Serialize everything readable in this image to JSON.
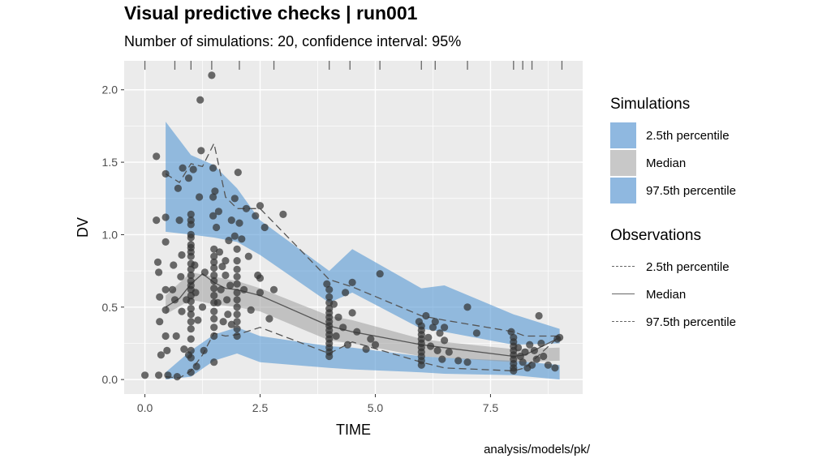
{
  "header": {
    "title": "Visual predictive checks | run001",
    "subtitle": "Number of simulations: 20, confidence interval: 95%"
  },
  "caption": "analysis/models/pk/",
  "colors": {
    "panel_bg": "#ebebeb",
    "grid": "#ffffff",
    "band_blue": "#5b9bd5",
    "band_grey": "#9e9e9e",
    "line": "#555555",
    "points": "#333333"
  },
  "legend": {
    "simulations_title": "Simulations",
    "simulations": [
      {
        "label": "2.5th percentile",
        "color": "#8fb8e0"
      },
      {
        "label": "Median",
        "color": "#c8c8c8"
      },
      {
        "label": "97.5th percentile",
        "color": "#8fb8e0"
      }
    ],
    "observations_title": "Observations",
    "observations": [
      {
        "label": "2.5th percentile",
        "style": "dashed"
      },
      {
        "label": "Median",
        "style": "solid"
      },
      {
        "label": "97.5th percentile",
        "style": "dashed"
      }
    ]
  },
  "chart_data": {
    "type": "scatter",
    "title": "Visual predictive checks | run001",
    "subtitle": "Number of simulations: 20, confidence interval: 95%",
    "xlabel": "TIME",
    "ylabel": "DV",
    "xlim": [
      -0.45,
      9.5
    ],
    "ylim": [
      -0.1,
      2.2
    ],
    "xticks": [
      0.0,
      2.5,
      5.0,
      7.5
    ],
    "xtick_labels": [
      "0.0",
      "2.5",
      "5.0",
      "7.5"
    ],
    "yticks": [
      0.0,
      0.5,
      1.0,
      1.5,
      2.0
    ],
    "ytick_labels": [
      "0.0",
      "0.5",
      "1.0",
      "1.5",
      "2.0"
    ],
    "grid": true,
    "legend_position": "right",
    "bin_edges": [
      0.0,
      0.65,
      1.0,
      1.45,
      2.05,
      2.8,
      4.0,
      4.45,
      5.1,
      6.0,
      6.3,
      7.0,
      8.0,
      8.2,
      8.4,
      9.05
    ],
    "sim_bands": {
      "x": [
        0.45,
        1.0,
        1.5,
        2.0,
        2.5,
        4.0,
        4.5,
        6.0,
        6.5,
        8.0,
        9.0
      ],
      "lower_pct_low": [
        0.0,
        0.02,
        0.13,
        0.18,
        0.12,
        0.08,
        0.07,
        0.05,
        0.04,
        0.03,
        0.0
      ],
      "lower_pct_high": [
        0.05,
        0.2,
        0.31,
        0.36,
        0.3,
        0.23,
        0.22,
        0.16,
        0.15,
        0.13,
        0.1
      ],
      "median_low": [
        0.45,
        0.55,
        0.52,
        0.5,
        0.47,
        0.27,
        0.25,
        0.16,
        0.15,
        0.12,
        0.13
      ],
      "median_high": [
        0.58,
        0.74,
        0.71,
        0.68,
        0.63,
        0.44,
        0.41,
        0.28,
        0.26,
        0.21,
        0.22
      ],
      "upper_pct_low": [
        1.02,
        1.0,
        0.98,
        0.95,
        0.86,
        0.53,
        0.6,
        0.35,
        0.33,
        0.24,
        0.25
      ],
      "upper_pct_high": [
        1.78,
        1.55,
        1.48,
        1.32,
        1.1,
        0.75,
        0.9,
        0.63,
        0.65,
        0.45,
        0.35
      ]
    },
    "observed": {
      "x": [
        0.45,
        0.75,
        1.0,
        1.25,
        1.5,
        1.75,
        2.0,
        2.5,
        4.0,
        4.5,
        6.0,
        6.5,
        8.0,
        8.25,
        9.0
      ],
      "p025": [
        0.02,
        0.01,
        0.06,
        0.17,
        0.32,
        0.3,
        0.31,
        0.36,
        0.18,
        0.26,
        0.12,
        0.08,
        0.06,
        0.08,
        0.3
      ],
      "median": [
        0.5,
        0.56,
        0.66,
        0.73,
        0.67,
        0.63,
        0.62,
        0.58,
        0.37,
        0.33,
        0.24,
        0.22,
        0.16,
        0.17,
        0.29
      ],
      "p975": [
        1.42,
        1.36,
        1.49,
        1.47,
        1.63,
        1.26,
        1.18,
        1.18,
        0.69,
        0.64,
        0.44,
        0.41,
        0.33,
        0.3,
        0.3
      ]
    },
    "points": [
      [
        0.0,
        0.03
      ],
      [
        0.25,
        1.54
      ],
      [
        0.25,
        1.1
      ],
      [
        0.28,
        0.81
      ],
      [
        0.3,
        0.74
      ],
      [
        0.32,
        0.57
      ],
      [
        0.32,
        0.4
      ],
      [
        0.35,
        0.17
      ],
      [
        0.3,
        0.03
      ],
      [
        0.45,
        1.42
      ],
      [
        0.45,
        1.12
      ],
      [
        0.45,
        0.95
      ],
      [
        0.45,
        0.62
      ],
      [
        0.45,
        0.48
      ],
      [
        0.45,
        0.3
      ],
      [
        0.48,
        0.2
      ],
      [
        0.5,
        0.03
      ],
      [
        0.6,
        0.62
      ],
      [
        0.62,
        0.79
      ],
      [
        0.65,
        0.55
      ],
      [
        0.68,
        0.3
      ],
      [
        0.7,
        0.02
      ],
      [
        0.72,
        1.32
      ],
      [
        0.75,
        1.1
      ],
      [
        0.78,
        0.71
      ],
      [
        0.8,
        0.86
      ],
      [
        0.8,
        0.47
      ],
      [
        0.82,
        1.46
      ],
      [
        0.85,
        0.21
      ],
      [
        0.9,
        0.55
      ],
      [
        0.95,
        1.39
      ],
      [
        0.95,
        0.17
      ],
      [
        1.0,
        1.14
      ],
      [
        1.0,
        1.1
      ],
      [
        1.0,
        1.07
      ],
      [
        1.0,
        1.0
      ],
      [
        1.0,
        0.98
      ],
      [
        1.0,
        0.93
      ],
      [
        1.0,
        0.91
      ],
      [
        1.0,
        0.88
      ],
      [
        1.0,
        0.85
      ],
      [
        1.0,
        0.8
      ],
      [
        1.0,
        0.76
      ],
      [
        1.0,
        0.72
      ],
      [
        1.0,
        0.68
      ],
      [
        1.0,
        0.65
      ],
      [
        1.0,
        0.62
      ],
      [
        1.0,
        0.58
      ],
      [
        1.0,
        0.54
      ],
      [
        1.0,
        0.49
      ],
      [
        1.0,
        0.45
      ],
      [
        1.0,
        0.4
      ],
      [
        1.0,
        0.35
      ],
      [
        1.0,
        0.28
      ],
      [
        1.0,
        0.2
      ],
      [
        1.0,
        0.15
      ],
      [
        1.0,
        0.05
      ],
      [
        1.05,
        1.45
      ],
      [
        1.08,
        0.79
      ],
      [
        1.1,
        0.6
      ],
      [
        1.12,
        0.09
      ],
      [
        1.15,
        0.41
      ],
      [
        1.18,
        1.26
      ],
      [
        1.2,
        1.93
      ],
      [
        1.22,
        1.58
      ],
      [
        1.25,
        0.5
      ],
      [
        1.28,
        0.2
      ],
      [
        1.3,
        0.74
      ],
      [
        1.45,
        2.1
      ],
      [
        1.48,
        1.46
      ],
      [
        1.48,
        1.26
      ],
      [
        1.48,
        1.13
      ],
      [
        1.5,
        0.9
      ],
      [
        1.5,
        0.85
      ],
      [
        1.5,
        0.81
      ],
      [
        1.5,
        0.77
      ],
      [
        1.5,
        0.72
      ],
      [
        1.5,
        0.68
      ],
      [
        1.5,
        0.63
      ],
      [
        1.5,
        0.58
      ],
      [
        1.5,
        0.53
      ],
      [
        1.5,
        0.47
      ],
      [
        1.5,
        0.42
      ],
      [
        1.5,
        0.36
      ],
      [
        1.5,
        0.3
      ],
      [
        1.5,
        0.12
      ],
      [
        1.52,
        1.3
      ],
      [
        1.55,
        1.05
      ],
      [
        1.58,
        0.53
      ],
      [
        1.6,
        1.16
      ],
      [
        1.62,
        0.88
      ],
      [
        1.65,
        0.62
      ],
      [
        1.68,
        0.78
      ],
      [
        1.7,
        0.4
      ],
      [
        1.75,
        0.82
      ],
      [
        1.75,
        0.72
      ],
      [
        1.78,
        0.55
      ],
      [
        1.8,
        0.45
      ],
      [
        1.82,
        0.96
      ],
      [
        1.85,
        0.65
      ],
      [
        1.88,
        1.1
      ],
      [
        1.88,
        0.38
      ],
      [
        1.95,
        1.25
      ],
      [
        1.95,
        0.99
      ],
      [
        2.0,
        0.9
      ],
      [
        2.0,
        0.82
      ],
      [
        2.0,
        0.76
      ],
      [
        2.0,
        0.71
      ],
      [
        2.0,
        0.66
      ],
      [
        2.0,
        0.6
      ],
      [
        2.0,
        0.55
      ],
      [
        2.0,
        0.5
      ],
      [
        2.0,
        0.45
      ],
      [
        2.0,
        0.4
      ],
      [
        2.0,
        0.35
      ],
      [
        2.0,
        0.3
      ],
      [
        2.02,
        1.43
      ],
      [
        2.05,
        1.08
      ],
      [
        2.1,
        0.97
      ],
      [
        2.15,
        0.62
      ],
      [
        2.2,
        1.18
      ],
      [
        2.25,
        0.85
      ],
      [
        2.3,
        0.48
      ],
      [
        2.4,
        1.13
      ],
      [
        2.45,
        0.72
      ],
      [
        2.5,
        0.7
      ],
      [
        2.5,
        1.2
      ],
      [
        2.5,
        0.6
      ],
      [
        2.6,
        1.05
      ],
      [
        2.7,
        0.42
      ],
      [
        2.8,
        0.62
      ],
      [
        3.0,
        1.14
      ],
      [
        3.95,
        0.66
      ],
      [
        4.0,
        0.62
      ],
      [
        4.0,
        0.57
      ],
      [
        4.0,
        0.53
      ],
      [
        4.0,
        0.49
      ],
      [
        4.0,
        0.46
      ],
      [
        4.0,
        0.43
      ],
      [
        4.0,
        0.4
      ],
      [
        4.0,
        0.37
      ],
      [
        4.0,
        0.34
      ],
      [
        4.0,
        0.31
      ],
      [
        4.0,
        0.28
      ],
      [
        4.0,
        0.25
      ],
      [
        4.0,
        0.22
      ],
      [
        4.0,
        0.19
      ],
      [
        4.0,
        0.16
      ],
      [
        4.1,
        0.52
      ],
      [
        4.15,
        0.3
      ],
      [
        4.2,
        0.43
      ],
      [
        4.3,
        0.36
      ],
      [
        4.35,
        0.6
      ],
      [
        4.4,
        0.24
      ],
      [
        4.5,
        0.46
      ],
      [
        4.5,
        0.67
      ],
      [
        4.6,
        0.33
      ],
      [
        4.8,
        0.21
      ],
      [
        5.0,
        0.24
      ],
      [
        4.9,
        0.28
      ],
      [
        5.1,
        0.73
      ],
      [
        5.95,
        0.4
      ],
      [
        6.0,
        0.37
      ],
      [
        6.0,
        0.34
      ],
      [
        6.0,
        0.31
      ],
      [
        6.0,
        0.28
      ],
      [
        6.0,
        0.25
      ],
      [
        6.0,
        0.22
      ],
      [
        6.0,
        0.19
      ],
      [
        6.0,
        0.16
      ],
      [
        6.0,
        0.13
      ],
      [
        6.0,
        0.1
      ],
      [
        6.1,
        0.44
      ],
      [
        6.15,
        0.29
      ],
      [
        6.2,
        0.23
      ],
      [
        6.25,
        0.36
      ],
      [
        6.3,
        0.4
      ],
      [
        6.35,
        0.2
      ],
      [
        6.4,
        0.32
      ],
      [
        6.45,
        0.14
      ],
      [
        6.5,
        0.36
      ],
      [
        6.5,
        0.27
      ],
      [
        6.6,
        0.19
      ],
      [
        6.8,
        0.13
      ],
      [
        7.0,
        0.5
      ],
      [
        7.2,
        0.32
      ],
      [
        7.0,
        0.12
      ],
      [
        7.95,
        0.33
      ],
      [
        8.0,
        0.29
      ],
      [
        8.0,
        0.26
      ],
      [
        8.0,
        0.23
      ],
      [
        8.0,
        0.2
      ],
      [
        8.0,
        0.17
      ],
      [
        8.0,
        0.14
      ],
      [
        8.0,
        0.11
      ],
      [
        8.0,
        0.08
      ],
      [
        8.0,
        0.06
      ],
      [
        8.1,
        0.22
      ],
      [
        8.15,
        0.16
      ],
      [
        8.2,
        0.12
      ],
      [
        8.25,
        0.19
      ],
      [
        8.3,
        0.08
      ],
      [
        8.35,
        0.24
      ],
      [
        8.4,
        0.1
      ],
      [
        8.45,
        0.2
      ],
      [
        8.5,
        0.14
      ],
      [
        8.55,
        0.44
      ],
      [
        8.6,
        0.25
      ],
      [
        8.65,
        0.16
      ],
      [
        8.75,
        0.1
      ],
      [
        8.9,
        0.08
      ],
      [
        9.0,
        0.29
      ],
      [
        8.95,
        0.28
      ]
    ]
  }
}
